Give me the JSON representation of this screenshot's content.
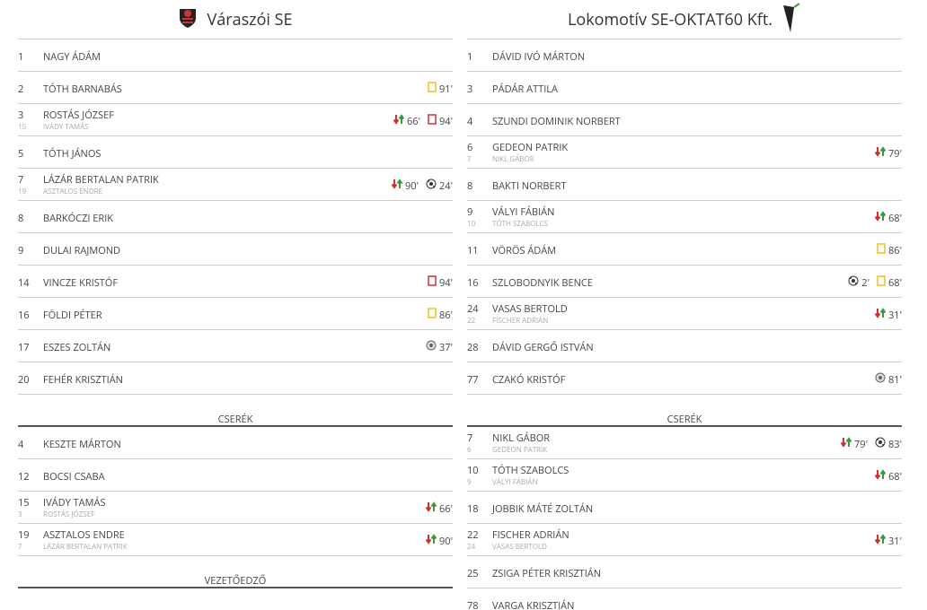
{
  "home": {
    "name": "Váraszói SE",
    "starters": [
      {
        "number": "1",
        "name": "NAGY ÁDÁM",
        "events": []
      },
      {
        "number": "2",
        "name": "TÓTH BARNABÁS",
        "events": [
          {
            "type": "yellow",
            "minute": "91'"
          }
        ]
      },
      {
        "number": "3",
        "name": "ROSTÁS JÓZSEF",
        "sub_number": "15",
        "sub_name": "IVÁDY TAMÁS",
        "events": [
          {
            "type": "sub",
            "minute": "66'"
          },
          {
            "type": "red",
            "minute": "94'"
          }
        ]
      },
      {
        "number": "5",
        "name": "TÓTH JÁNOS",
        "events": []
      },
      {
        "number": "7",
        "name": "LÁZÁR BERTALAN PATRIK",
        "sub_number": "19",
        "sub_name": "ASZTALOS ENDRE",
        "events": [
          {
            "type": "sub",
            "minute": "90'"
          },
          {
            "type": "goal",
            "minute": "24'"
          }
        ]
      },
      {
        "number": "8",
        "name": "BARKÓCZI ERIK",
        "events": []
      },
      {
        "number": "9",
        "name": "DULAI RAJMOND",
        "events": []
      },
      {
        "number": "14",
        "name": "VINCZE KRISTÓF",
        "events": [
          {
            "type": "red",
            "minute": "94'"
          }
        ]
      },
      {
        "number": "16",
        "name": "FÖLDI PÉTER",
        "events": [
          {
            "type": "yellow",
            "minute": "86'"
          }
        ]
      },
      {
        "number": "17",
        "name": "ESZES ZOLTÁN",
        "events": [
          {
            "type": "owngoal",
            "minute": "37'"
          }
        ]
      },
      {
        "number": "20",
        "name": "FEHÉR KRISZTIÁN",
        "events": []
      }
    ],
    "subs_title": "CSERÉK",
    "subs": [
      {
        "number": "4",
        "name": "KESZTE MÁRTON",
        "events": []
      },
      {
        "number": "12",
        "name": "BOCSI CSABA",
        "events": []
      },
      {
        "number": "15",
        "name": "IVÁDY TAMÁS",
        "sub_number": "3",
        "sub_name": "ROSTÁS JÓZSEF",
        "events": [
          {
            "type": "sub",
            "minute": "66'"
          }
        ]
      },
      {
        "number": "19",
        "name": "ASZTALOS ENDRE",
        "sub_number": "7",
        "sub_name": "LÁZÁR BERTALAN PATRIK",
        "events": [
          {
            "type": "sub",
            "minute": "90'"
          }
        ]
      }
    ],
    "coach_title": "VEZETŐEDZŐ"
  },
  "away": {
    "name": "Lokomotív SE-OKTAT60 Kft.",
    "starters": [
      {
        "number": "1",
        "name": "DÁVID IVÓ MÁRTON",
        "events": []
      },
      {
        "number": "3",
        "name": "PÁDÁR ATTILA",
        "events": []
      },
      {
        "number": "4",
        "name": "SZUNDI DOMINIK NORBERT",
        "events": []
      },
      {
        "number": "6",
        "name": "GEDEON PATRIK",
        "sub_number": "7",
        "sub_name": "NIKL GÁBOR",
        "events": [
          {
            "type": "sub",
            "minute": "79'"
          }
        ]
      },
      {
        "number": "8",
        "name": "BAKTI NORBERT",
        "events": []
      },
      {
        "number": "9",
        "name": "VÁLYI FÁBIÁN",
        "sub_number": "10",
        "sub_name": "TÓTH SZABOLCS",
        "events": [
          {
            "type": "sub",
            "minute": "68'"
          }
        ]
      },
      {
        "number": "11",
        "name": "VÖRÖS ÁDÁM",
        "events": [
          {
            "type": "yellow",
            "minute": "86'"
          }
        ]
      },
      {
        "number": "16",
        "name": "SZLOBODNYIK BENCE",
        "events": [
          {
            "type": "goal",
            "minute": "2'"
          },
          {
            "type": "yellow",
            "minute": "68'"
          }
        ]
      },
      {
        "number": "24",
        "name": "VASAS BERTOLD",
        "sub_number": "22",
        "sub_name": "FISCHER ADRIÁN",
        "events": [
          {
            "type": "sub",
            "minute": "31'"
          }
        ]
      },
      {
        "number": "28",
        "name": "DÁVID GERGŐ ISTVÁN",
        "events": []
      },
      {
        "number": "77",
        "name": "CZAKÓ KRISTÓF",
        "events": [
          {
            "type": "owngoal",
            "minute": "81'"
          }
        ]
      }
    ],
    "subs_title": "CSERÉK",
    "subs": [
      {
        "number": "7",
        "name": "NIKL GÁBOR",
        "sub_number": "6",
        "sub_name": "GEDEON PATRIK",
        "events": [
          {
            "type": "sub",
            "minute": "79'"
          },
          {
            "type": "goal",
            "minute": "83'"
          }
        ]
      },
      {
        "number": "10",
        "name": "TÓTH SZABOLCS",
        "sub_number": "9",
        "sub_name": "VÁLYI FÁBIÁN",
        "events": [
          {
            "type": "sub",
            "minute": "68'"
          }
        ]
      },
      {
        "number": "18",
        "name": "JOBBIK MÁTÉ ZOLTÁN",
        "events": []
      },
      {
        "number": "22",
        "name": "FISCHER ADRIÁN",
        "sub_number": "24",
        "sub_name": "VASAS BERTOLD",
        "events": [
          {
            "type": "sub",
            "minute": "31'"
          }
        ]
      },
      {
        "number": "25",
        "name": "ZSIGA PÉTER KRISZTIÁN",
        "events": []
      },
      {
        "number": "78",
        "name": "VARGA KRISZTIÁN",
        "events": []
      }
    ],
    "subs_title_dummy_removed": null
  }
}
